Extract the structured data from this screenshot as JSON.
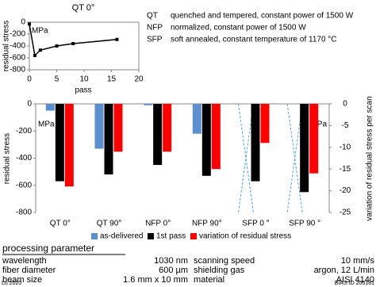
{
  "chart_data": [
    {
      "type": "line",
      "title": "QT 0°",
      "x_label": "pass",
      "y_label": "residual stress",
      "y_unit": "MPa",
      "x": [
        0,
        1,
        2,
        5,
        8,
        16
      ],
      "series": [
        {
          "color": "#000000",
          "values": [
            -30,
            -560,
            -470,
            -400,
            -360,
            -290
          ]
        }
      ],
      "xlim": [
        0,
        20
      ],
      "xticks": [
        0,
        5,
        10,
        15,
        20
      ],
      "ylim": [
        -800,
        0
      ],
      "yticks": [
        0,
        -200,
        -400,
        -600,
        -800
      ]
    },
    {
      "type": "bar",
      "y_label": "residual stress",
      "y_unit": "MPa",
      "y2_label": "variation of residual stress per scan",
      "y2_unit": "MPa",
      "categories": [
        "QT 0°",
        "QT 90°",
        "NFP 0°",
        "NFP 90°",
        "SFP 0 °",
        "SFP 90 °"
      ],
      "series": [
        {
          "name": "as-delivered",
          "color": "#5b8fd0",
          "values": [
            -50,
            -330,
            -10,
            -220,
            null,
            null
          ]
        },
        {
          "name": "1st pass",
          "color": "#000000",
          "values": [
            -570,
            -520,
            -450,
            -530,
            -570,
            -650
          ]
        },
        {
          "name": "variation of residual stress",
          "color": "#ff0000",
          "axis": "y2",
          "values": [
            -19,
            -11,
            -11,
            -15,
            -9,
            -16
          ]
        }
      ],
      "ylim": [
        -800,
        0
      ],
      "yticks": [
        0,
        -200,
        -400,
        -600,
        -800
      ],
      "y2lim": [
        -25,
        0
      ],
      "y2ticks": [
        0,
        -5,
        -10,
        -15,
        -20,
        -25
      ]
    }
  ],
  "abbreviations": [
    {
      "code": "QT",
      "text": "quenched and tempered, constant power of 1500 W"
    },
    {
      "code": "NFP",
      "text": "normalized, constant power of 1500 W"
    },
    {
      "code": "SFP",
      "text": "soft annealed, constant temperature of 1170 °C"
    }
  ],
  "processing": {
    "title": "processing parameter",
    "rows": [
      [
        "wavelength",
        "1030 nm",
        "scanning speed",
        "10 mm/s"
      ],
      [
        "fiber diameter",
        "600 µm",
        "shielding gas",
        "argon, 12 L/min"
      ],
      [
        "beam size",
        "1.6 mm x 10 mm",
        "material",
        "AISI 4140"
      ]
    ]
  },
  "footer": {
    "left": "Lu 2020",
    "right": "BIAS ID 200181"
  }
}
